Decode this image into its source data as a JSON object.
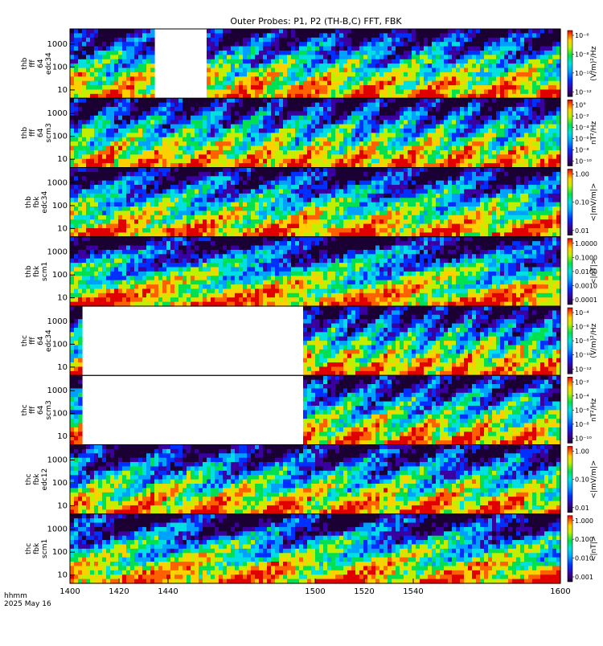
{
  "chart_data": {
    "type": "heatmap",
    "title": "Outer Probes: P1, P2 (TH-B,C) FFT, FBK",
    "x_axis": {
      "range": [
        1400,
        1600
      ],
      "tick_values": [
        1400,
        1420,
        1440,
        1500,
        1520,
        1540,
        1600
      ],
      "tick_labels": [
        "1400",
        "1420",
        "1440",
        "1500",
        "1520",
        "1540",
        "1600"
      ]
    },
    "footer": {
      "line1": "hhmm",
      "line2": "2025 May 16"
    },
    "panels": [
      {
        "id": "thb-fff-64-edc34",
        "label_lines": [
          "thb",
          "fff",
          "64",
          "edc34"
        ],
        "y_ticks": [
          "1000",
          "100",
          "10"
        ],
        "cbar_ticks": [
          "10⁻⁶",
          "10⁻⁸",
          "10⁻¹⁰",
          "10⁻¹²"
        ],
        "cbar_unit": "(V/m)²/Hz",
        "gaps": [
          [
            1435,
            1455
          ]
        ],
        "cycles": 0.4,
        "phase": 0.0
      },
      {
        "id": "thb-fff-64-scm3",
        "label_lines": [
          "thb",
          "fff",
          "64",
          "scm3"
        ],
        "y_ticks": [
          "1000",
          "100",
          "10"
        ],
        "cbar_ticks": [
          "10°",
          "10⁻²",
          "10⁻⁴",
          "10⁻⁶",
          "10⁻⁸",
          "10⁻¹⁰"
        ],
        "cbar_unit": "nT²/Hz",
        "gaps": [],
        "cycles": 0.5,
        "phase": 0.9
      },
      {
        "id": "thb-fbk-edc34",
        "label_lines": [
          "thb",
          "fbk",
          "edc34"
        ],
        "y_ticks": [
          "1000",
          "100",
          "10"
        ],
        "cbar_ticks": [
          "1.00",
          "0.10",
          "0.01"
        ],
        "cbar_unit": "<|mV/m|>",
        "gaps": [],
        "cycles": 0.3,
        "phase": 1.7
      },
      {
        "id": "thb-fbk-scm1",
        "label_lines": [
          "thb",
          "fbk",
          "scm1"
        ],
        "y_ticks": [
          "1000",
          "100",
          "10"
        ],
        "cbar_ticks": [
          "1.0000",
          "0.1000",
          "0.0100",
          "0.0010",
          "0.0001"
        ],
        "cbar_unit": "<|nT|>",
        "gaps": [],
        "cycles": 0.2,
        "phase": 2.4
      },
      {
        "id": "thc-fff-64-edc34",
        "label_lines": [
          "thc",
          "fff",
          "64",
          "edc34"
        ],
        "y_ticks": [
          "1000",
          "100",
          "10"
        ],
        "cbar_ticks": [
          "10⁻⁴",
          "10⁻⁶",
          "10⁻⁸",
          "10⁻¹⁰",
          "10⁻¹²"
        ],
        "cbar_unit": "(V/m)²/Hz",
        "gaps": [
          [
            1405,
            1495
          ]
        ],
        "cycles": 0.6,
        "phase": 3.1
      },
      {
        "id": "thc-fff-64-scm3",
        "label_lines": [
          "thc",
          "fff",
          "64",
          "scm3"
        ],
        "y_ticks": [
          "1000",
          "100",
          "10"
        ],
        "cbar_ticks": [
          "10⁻²",
          "10⁻⁴",
          "10⁻⁶",
          "10⁻⁸",
          "10⁻¹⁰"
        ],
        "cbar_unit": "nT²/Hz",
        "gaps": [
          [
            1405,
            1495
          ]
        ],
        "cycles": 0.45,
        "phase": 4.2
      },
      {
        "id": "thc-fbk-edc12",
        "label_lines": [
          "thc",
          "fbk",
          "edc12"
        ],
        "y_ticks": [
          "1000",
          "100",
          "10"
        ],
        "cbar_ticks": [
          "1.00",
          "0.10",
          "0.01"
        ],
        "cbar_unit": "<|mV/m|>",
        "gaps": [],
        "cycles": 0.35,
        "phase": 5.0
      },
      {
        "id": "thc-fbk-scm1",
        "label_lines": [
          "thc",
          "fbk",
          "scm1"
        ],
        "y_ticks": [
          "1000",
          "100",
          "10"
        ],
        "cbar_ticks": [
          "1.000",
          "0.100",
          "0.010",
          "0.001"
        ],
        "cbar_unit": "<|nT|>",
        "gaps": [],
        "cycles": 0.25,
        "phase": 5.8
      }
    ]
  }
}
